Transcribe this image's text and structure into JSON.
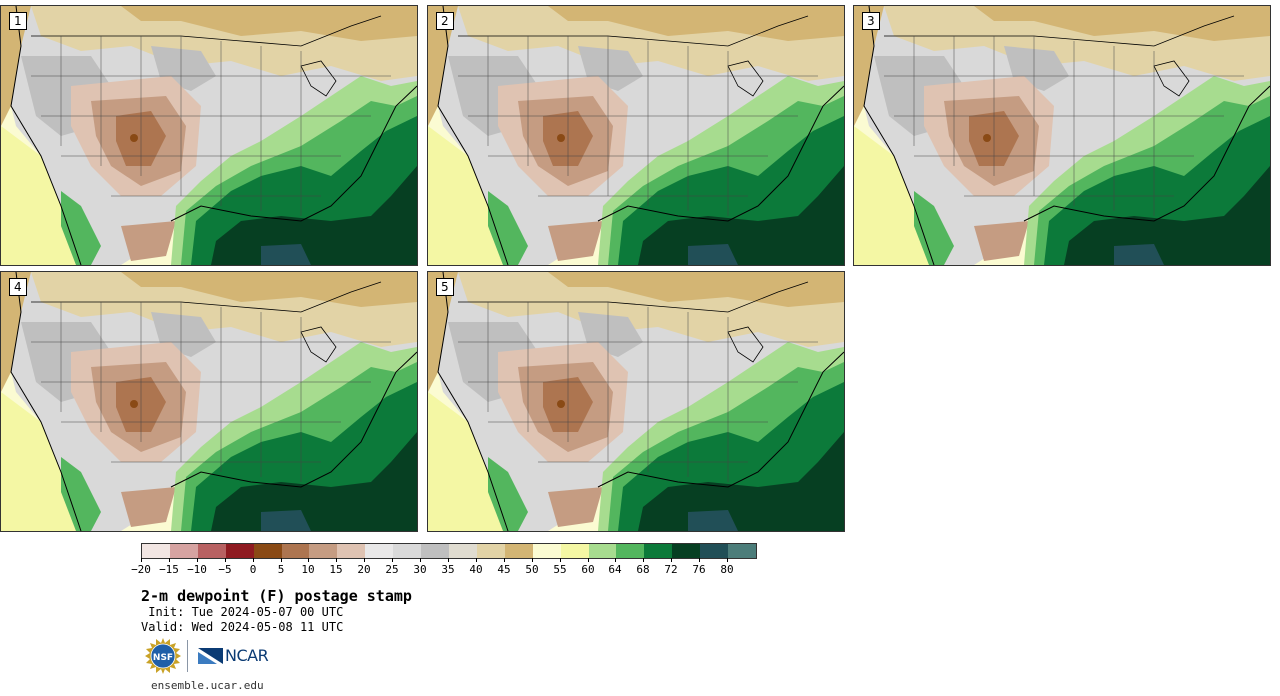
{
  "panels": [
    {
      "label": "1"
    },
    {
      "label": "2"
    },
    {
      "label": "3"
    },
    {
      "label": "4"
    },
    {
      "label": "5"
    }
  ],
  "colorbar": {
    "ticks": [
      "−20",
      "−15",
      "−10",
      "−5",
      "0",
      "5",
      "10",
      "15",
      "20",
      "25",
      "30",
      "35",
      "40",
      "45",
      "50",
      "55",
      "60",
      "64",
      "68",
      "72",
      "76",
      "80"
    ],
    "colors": [
      "#f2e6e3",
      "#d6a3a1",
      "#b86162",
      "#8f1b21",
      "#8a4a15",
      "#ad7550",
      "#c59c82",
      "#dfc3b2",
      "#e9e8e8",
      "#d9d9d9",
      "#bfbfbf",
      "#e0dcd0",
      "#e2d3a6",
      "#d3b574",
      "#fbfbd2",
      "#f4f7a4",
      "#a7dc8f",
      "#53b65e",
      "#0c7a3a",
      "#063f22",
      "#214f57",
      "#4c7d7a"
    ]
  },
  "title": "2-m dewpoint (F) postage stamp",
  "init_text": " Init: Tue 2024-05-07 00 UTC",
  "valid_text": "Valid: Wed 2024-05-08 11 UTC",
  "logos": {
    "nsf": "NSF",
    "ncar": "NCAR"
  },
  "footer_url": "ensemble.ucar.edu"
}
